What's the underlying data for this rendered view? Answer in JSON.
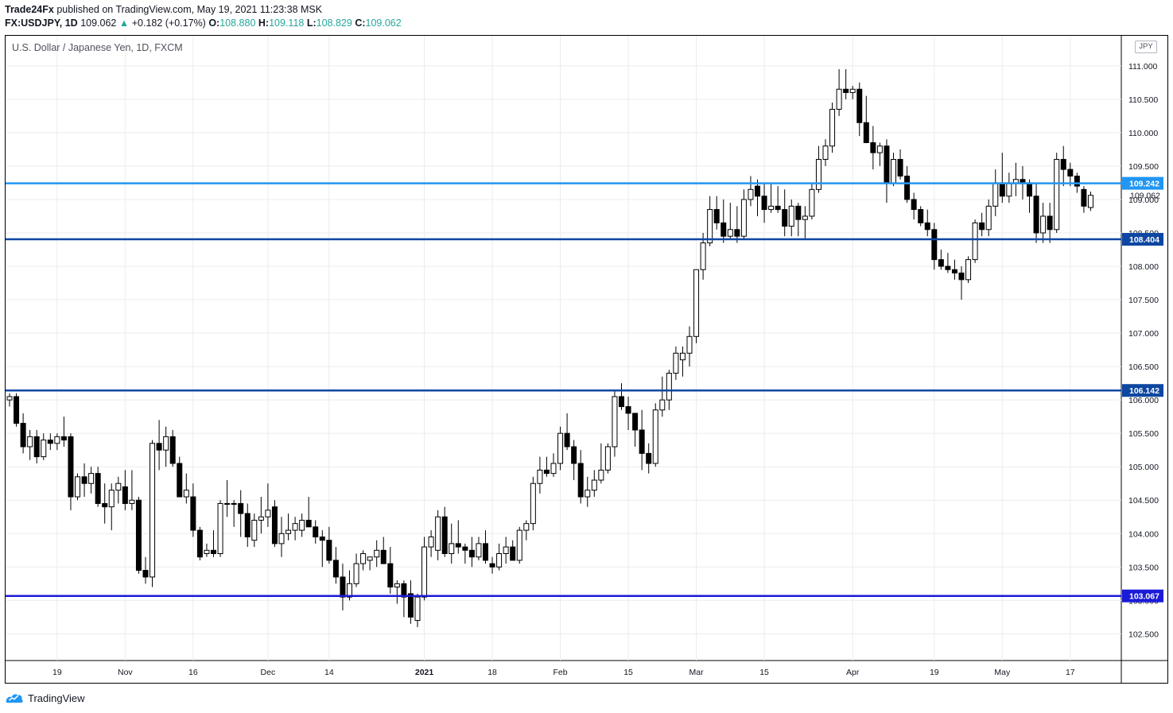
{
  "header": {
    "publisher": "Trade24Fx",
    "published_text": "published on TradingView.com, May 19, 2021 11:23:38 MSK",
    "symbol": "FX:USDJPY, 1D",
    "last": "109.062",
    "change": "+0.182 (+0.17%)",
    "o_label": "O:",
    "o": "108.880",
    "h_label": "H:",
    "h": "109.118",
    "l_label": "L:",
    "l": "108.829",
    "c_label": "C:",
    "c": "109.062"
  },
  "legend_title": "U.S. Dollar / Japanese Yen, 1D, FXCM",
  "currency": "JPY",
  "footer": {
    "brand": "TradingView"
  },
  "colors": {
    "grid": "#e9ecef",
    "candle_up": "#ffffff",
    "candle_down": "#000000",
    "line_109242": "#2196f3",
    "line_108404": "#0d47a1",
    "line_106142": "#0d47a1",
    "line_103067": "#1a1ad8",
    "last_price_tag": "#131722"
  },
  "chart_data": {
    "type": "candlestick",
    "title": "U.S. Dollar / Japanese Yen, 1D, FXCM",
    "y_unit": "JPY",
    "ylim": [
      102.1,
      111.45
    ],
    "y_ticks": [
      102.5,
      103.0,
      103.5,
      104.0,
      104.5,
      105.0,
      105.5,
      106.0,
      106.5,
      107.0,
      107.5,
      108.0,
      108.5,
      109.0,
      109.5,
      110.0,
      110.5,
      111.0
    ],
    "y_tick_labels": [
      "102.500",
      "103.000",
      "103.500",
      "104.000",
      "104.500",
      "105.000",
      "105.500",
      "106.000",
      "106.500",
      "107.000",
      "107.500",
      "108.000",
      "108.500",
      "109.000",
      "109.500",
      "110.000",
      "110.500",
      "111.000"
    ],
    "x_tick_labels": [
      {
        "label": "19",
        "bar": 7,
        "bold": false
      },
      {
        "label": "Nov",
        "bar": 17,
        "bold": false
      },
      {
        "label": "16",
        "bar": 27,
        "bold": false
      },
      {
        "label": "Dec",
        "bar": 38,
        "bold": false
      },
      {
        "label": "14",
        "bar": 47,
        "bold": false
      },
      {
        "label": "2021",
        "bar": 61,
        "bold": true
      },
      {
        "label": "18",
        "bar": 71,
        "bold": false
      },
      {
        "label": "Feb",
        "bar": 81,
        "bold": false
      },
      {
        "label": "15",
        "bar": 91,
        "bold": false
      },
      {
        "label": "Mar",
        "bar": 101,
        "bold": false
      },
      {
        "label": "15",
        "bar": 111,
        "bold": false
      },
      {
        "label": "Apr",
        "bar": 124,
        "bold": false
      },
      {
        "label": "19",
        "bar": 136,
        "bold": false
      },
      {
        "label": "May",
        "bar": 146,
        "bold": false
      },
      {
        "label": "17",
        "bar": 156,
        "bold": false
      }
    ],
    "horizontal_lines": [
      {
        "value": 109.242,
        "label": "109.242",
        "color": "#2196f3"
      },
      {
        "value": 108.404,
        "label": "108.404",
        "color": "#0d47a1"
      },
      {
        "value": 106.142,
        "label": "106.142",
        "color": "#0d47a1"
      },
      {
        "value": 103.067,
        "label": "103.067",
        "color": "#1a1ad8"
      }
    ],
    "last_price": {
      "value": 109.062,
      "label": "109.062"
    },
    "candles": [
      [
        106.0,
        106.1,
        105.9,
        106.05
      ],
      [
        106.05,
        106.1,
        105.6,
        105.65
      ],
      [
        105.65,
        105.8,
        105.2,
        105.3
      ],
      [
        105.3,
        105.55,
        105.1,
        105.45
      ],
      [
        105.45,
        105.55,
        105.05,
        105.15
      ],
      [
        105.15,
        105.5,
        105.1,
        105.4
      ],
      [
        105.4,
        105.5,
        105.25,
        105.35
      ],
      [
        105.35,
        105.5,
        105.25,
        105.45
      ],
      [
        105.45,
        105.75,
        105.3,
        105.4
      ],
      [
        105.45,
        105.5,
        104.35,
        104.55
      ],
      [
        104.55,
        104.9,
        104.5,
        104.85
      ],
      [
        104.85,
        105.05,
        104.55,
        104.75
      ],
      [
        104.75,
        105.0,
        104.6,
        104.9
      ],
      [
        104.9,
        105.0,
        104.4,
        104.45
      ],
      [
        104.45,
        104.75,
        104.15,
        104.4
      ],
      [
        104.4,
        104.75,
        104.05,
        104.65
      ],
      [
        104.65,
        104.85,
        104.45,
        104.75
      ],
      [
        104.7,
        104.95,
        104.35,
        104.45
      ],
      [
        104.45,
        104.95,
        104.35,
        104.5
      ],
      [
        104.5,
        104.55,
        103.4,
        103.45
      ],
      [
        103.45,
        103.65,
        103.25,
        103.35
      ],
      [
        103.35,
        105.4,
        103.2,
        105.35
      ],
      [
        105.35,
        105.7,
        104.95,
        105.25
      ],
      [
        105.25,
        105.6,
        105.0,
        105.45
      ],
      [
        105.45,
        105.55,
        105.0,
        105.05
      ],
      [
        105.05,
        105.15,
        104.55,
        104.55
      ],
      [
        104.55,
        104.9,
        104.45,
        104.65
      ],
      [
        104.55,
        104.75,
        103.95,
        104.05
      ],
      [
        104.05,
        104.1,
        103.6,
        103.65
      ],
      [
        103.7,
        103.85,
        103.65,
        103.75
      ],
      [
        103.75,
        104.05,
        103.65,
        103.7
      ],
      [
        103.7,
        104.5,
        103.65,
        104.45
      ],
      [
        104.45,
        104.8,
        104.25,
        104.45
      ],
      [
        104.45,
        104.5,
        104.1,
        104.45
      ],
      [
        104.45,
        104.65,
        103.95,
        104.3
      ],
      [
        104.3,
        104.45,
        103.8,
        103.95
      ],
      [
        103.9,
        104.3,
        103.8,
        104.2
      ],
      [
        104.2,
        104.55,
        104.0,
        104.25
      ],
      [
        104.25,
        104.75,
        104.1,
        104.35
      ],
      [
        104.4,
        104.5,
        103.8,
        103.85
      ],
      [
        103.85,
        104.25,
        103.65,
        104.0
      ],
      [
        104.0,
        104.3,
        103.9,
        104.05
      ],
      [
        104.05,
        104.25,
        103.9,
        104.15
      ],
      [
        104.05,
        104.3,
        103.95,
        104.2
      ],
      [
        104.2,
        104.55,
        104.1,
        104.1
      ],
      [
        104.1,
        104.2,
        103.85,
        103.95
      ],
      [
        103.95,
        104.05,
        103.5,
        103.9
      ],
      [
        103.9,
        104.1,
        103.55,
        103.6
      ],
      [
        103.6,
        103.8,
        103.25,
        103.35
      ],
      [
        103.35,
        103.55,
        102.85,
        103.05
      ],
      [
        103.05,
        103.45,
        103.0,
        103.25
      ],
      [
        103.25,
        103.7,
        103.2,
        103.55
      ],
      [
        103.55,
        103.75,
        103.45,
        103.7
      ],
      [
        103.6,
        103.65,
        103.45,
        103.65
      ],
      [
        103.65,
        103.9,
        103.5,
        103.75
      ],
      [
        103.75,
        103.95,
        103.55,
        103.55
      ],
      [
        103.55,
        103.8,
        103.1,
        103.2
      ],
      [
        103.2,
        103.3,
        102.95,
        103.25
      ],
      [
        103.25,
        103.3,
        102.75,
        103.05
      ],
      [
        103.1,
        103.3,
        102.65,
        102.75
      ],
      [
        102.7,
        103.1,
        102.6,
        103.05
      ],
      [
        103.05,
        103.95,
        103.0,
        103.8
      ],
      [
        103.8,
        104.05,
        103.65,
        103.95
      ],
      [
        103.75,
        104.35,
        103.6,
        104.25
      ],
      [
        104.25,
        104.4,
        103.65,
        103.7
      ],
      [
        103.7,
        104.15,
        103.55,
        103.85
      ],
      [
        103.85,
        104.2,
        103.7,
        103.8
      ],
      [
        103.8,
        103.85,
        103.55,
        103.75
      ],
      [
        103.75,
        103.95,
        103.5,
        103.65
      ],
      [
        103.65,
        103.95,
        103.6,
        103.85
      ],
      [
        103.85,
        104.05,
        103.55,
        103.6
      ],
      [
        103.55,
        103.65,
        103.4,
        103.5
      ],
      [
        103.5,
        103.85,
        103.45,
        103.7
      ],
      [
        103.7,
        103.95,
        103.55,
        103.8
      ],
      [
        103.8,
        103.9,
        103.6,
        103.6
      ],
      [
        103.6,
        104.1,
        103.55,
        104.05
      ],
      [
        104.05,
        104.2,
        103.9,
        104.15
      ],
      [
        104.15,
        104.85,
        104.05,
        104.75
      ],
      [
        104.75,
        105.15,
        104.6,
        104.95
      ],
      [
        104.95,
        105.15,
        104.85,
        104.9
      ],
      [
        104.9,
        105.2,
        104.85,
        105.05
      ],
      [
        105.05,
        105.6,
        104.95,
        105.5
      ],
      [
        105.5,
        105.8,
        105.25,
        105.3
      ],
      [
        105.3,
        105.4,
        104.8,
        105.05
      ],
      [
        105.05,
        105.25,
        104.45,
        104.55
      ],
      [
        104.55,
        104.85,
        104.4,
        104.65
      ],
      [
        104.65,
        104.95,
        104.55,
        104.8
      ],
      [
        104.8,
        105.35,
        104.75,
        104.95
      ],
      [
        104.95,
        105.35,
        104.9,
        105.3
      ],
      [
        105.3,
        106.15,
        105.15,
        106.05
      ],
      [
        106.05,
        106.25,
        105.85,
        105.9
      ],
      [
        105.9,
        106.05,
        105.55,
        105.8
      ],
      [
        105.8,
        105.8,
        105.3,
        105.55
      ],
      [
        105.55,
        105.85,
        104.95,
        105.2
      ],
      [
        105.2,
        105.35,
        104.9,
        105.05
      ],
      [
        105.05,
        105.95,
        105.0,
        105.85
      ],
      [
        105.85,
        106.35,
        105.75,
        106.0
      ],
      [
        106.0,
        106.45,
        105.85,
        106.4
      ],
      [
        106.4,
        106.8,
        106.3,
        106.7
      ],
      [
        106.6,
        106.8,
        106.35,
        106.7
      ],
      [
        106.7,
        107.1,
        106.5,
        106.95
      ],
      [
        106.95,
        107.95,
        106.85,
        107.95
      ],
      [
        107.95,
        108.5,
        107.8,
        108.35
      ],
      [
        108.35,
        109.05,
        108.3,
        108.85
      ],
      [
        108.85,
        109.05,
        108.55,
        108.65
      ],
      [
        108.65,
        109.0,
        108.35,
        108.45
      ],
      [
        108.45,
        108.95,
        108.4,
        108.55
      ],
      [
        108.55,
        108.9,
        108.35,
        108.45
      ],
      [
        108.45,
        109.15,
        108.4,
        109.0
      ],
      [
        109.0,
        109.35,
        108.9,
        109.15
      ],
      [
        109.2,
        109.3,
        108.75,
        109.05
      ],
      [
        109.05,
        109.25,
        108.65,
        108.85
      ],
      [
        108.85,
        109.25,
        108.8,
        108.9
      ],
      [
        108.9,
        109.2,
        108.8,
        108.85
      ],
      [
        108.85,
        109.15,
        108.45,
        108.6
      ],
      [
        108.6,
        109.0,
        108.45,
        108.9
      ],
      [
        108.9,
        108.95,
        108.45,
        108.7
      ],
      [
        108.7,
        108.9,
        108.4,
        108.75
      ],
      [
        108.75,
        109.25,
        108.7,
        109.15
      ],
      [
        109.15,
        109.8,
        109.1,
        109.6
      ],
      [
        109.6,
        109.9,
        109.5,
        109.8
      ],
      [
        109.8,
        110.45,
        109.7,
        110.35
      ],
      [
        110.35,
        110.95,
        110.25,
        110.65
      ],
      [
        110.65,
        110.95,
        110.5,
        110.6
      ],
      [
        110.6,
        110.7,
        110.5,
        110.65
      ],
      [
        110.65,
        110.75,
        109.95,
        110.15
      ],
      [
        110.15,
        110.55,
        109.9,
        109.85
      ],
      [
        109.85,
        110.1,
        109.45,
        109.7
      ],
      [
        109.7,
        109.85,
        109.5,
        109.8
      ],
      [
        109.8,
        109.9,
        108.95,
        109.25
      ],
      [
        109.25,
        109.7,
        109.2,
        109.6
      ],
      [
        109.6,
        109.75,
        109.3,
        109.35
      ],
      [
        109.35,
        109.5,
        108.95,
        109.0
      ],
      [
        109.0,
        109.1,
        108.7,
        108.85
      ],
      [
        108.85,
        108.9,
        108.6,
        108.65
      ],
      [
        108.65,
        108.85,
        108.45,
        108.55
      ],
      [
        108.55,
        108.65,
        107.95,
        108.1
      ],
      [
        108.1,
        108.25,
        107.95,
        108.0
      ],
      [
        108.0,
        108.2,
        107.9,
        107.95
      ],
      [
        107.95,
        108.1,
        107.8,
        107.9
      ],
      [
        107.9,
        108.0,
        107.5,
        107.8
      ],
      [
        107.8,
        108.15,
        107.75,
        108.1
      ],
      [
        108.1,
        108.7,
        108.05,
        108.65
      ],
      [
        108.65,
        108.8,
        108.45,
        108.55
      ],
      [
        108.55,
        109.0,
        108.45,
        108.9
      ],
      [
        108.9,
        109.45,
        108.75,
        109.25
      ],
      [
        109.25,
        109.7,
        108.95,
        109.05
      ],
      [
        109.05,
        109.4,
        108.95,
        109.25
      ],
      [
        109.25,
        109.55,
        109.05,
        109.3
      ],
      [
        109.3,
        109.5,
        109.0,
        109.25
      ],
      [
        109.25,
        109.3,
        108.8,
        109.05
      ],
      [
        109.05,
        109.25,
        108.35,
        108.5
      ],
      [
        108.5,
        108.95,
        108.35,
        108.75
      ],
      [
        108.75,
        108.95,
        108.35,
        108.55
      ],
      [
        108.55,
        109.7,
        108.5,
        109.6
      ],
      [
        109.6,
        109.8,
        109.2,
        109.45
      ],
      [
        109.45,
        109.55,
        109.2,
        109.35
      ],
      [
        109.35,
        109.4,
        109.1,
        109.2
      ],
      [
        109.15,
        109.2,
        108.8,
        108.9
      ],
      [
        108.88,
        109.118,
        108.829,
        109.062
      ]
    ]
  }
}
